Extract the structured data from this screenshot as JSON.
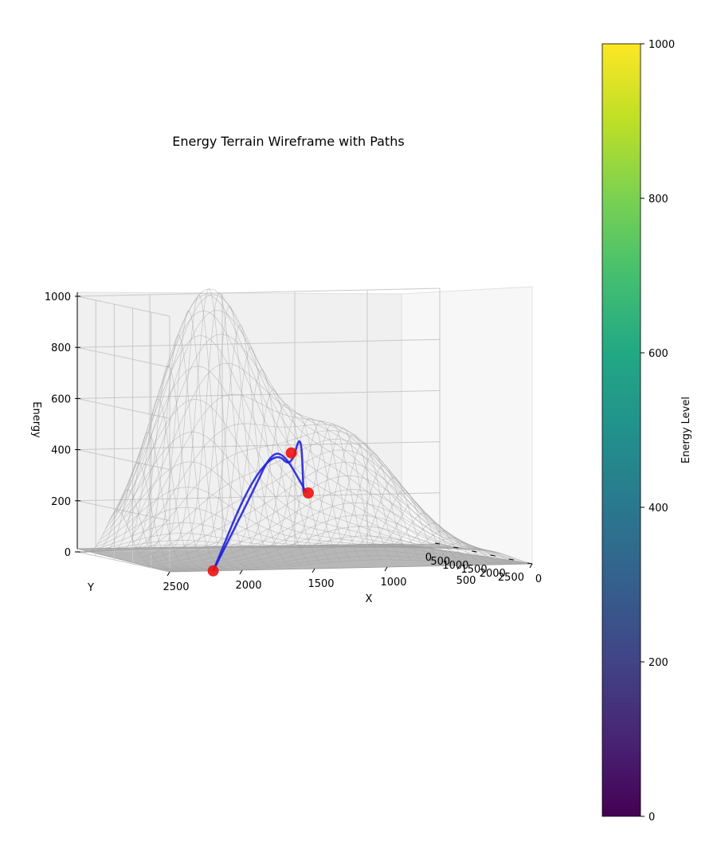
{
  "chart_data": {
    "type": "surface3d",
    "title": "Energy Terrain Wireframe with Paths",
    "xlabel": "X",
    "ylabel": "Y",
    "zlabel": "Energy",
    "x_ticks": [
      "0",
      "500",
      "1000",
      "1500",
      "2000",
      "2500"
    ],
    "y_ticks": [
      "0",
      "500",
      "1000",
      "1500",
      "2000",
      "2500"
    ],
    "z_ticks": [
      "0",
      "200",
      "400",
      "600",
      "800",
      "1000"
    ],
    "xlim": [
      0,
      2500
    ],
    "ylim": [
      0,
      2500
    ],
    "zlim": [
      0,
      1000
    ],
    "surface": {
      "style": "wireframe",
      "color": "#a0a0a0",
      "peaks": [
        {
          "x": 1900,
          "y": 1100,
          "height": 1000
        },
        {
          "x": 1100,
          "y": 1500,
          "height": 500
        }
      ]
    },
    "paths": [
      {
        "color": "#2020e0",
        "points": [
          [
            2200,
            2500,
            0
          ],
          [
            1700,
            1500,
            300
          ],
          [
            1460,
            1300,
            420
          ],
          [
            1330,
            1200,
            350
          ],
          [
            1250,
            1150,
            500
          ],
          [
            1220,
            1100,
            250
          ]
        ]
      },
      {
        "color": "#2020e0",
        "points": [
          [
            2200,
            2500,
            0
          ],
          [
            1650,
            1450,
            280
          ],
          [
            1500,
            1300,
            410
          ],
          [
            1380,
            1200,
            410
          ],
          [
            1200,
            1100,
            250
          ]
        ]
      }
    ],
    "markers": [
      {
        "x": 2200,
        "y": 2500,
        "z": 0,
        "color": "#ee1111"
      },
      {
        "x": 1330,
        "y": 1200,
        "z": 410,
        "color": "#ee1111"
      },
      {
        "x": 1200,
        "y": 1150,
        "z": 250,
        "color": "#ee1111"
      }
    ],
    "colorbar": {
      "label": "Energy Level",
      "colormap": "viridis",
      "range": [
        0,
        1000
      ],
      "ticks": [
        "0",
        "200",
        "400",
        "600",
        "800",
        "1000"
      ]
    },
    "grid": true
  }
}
